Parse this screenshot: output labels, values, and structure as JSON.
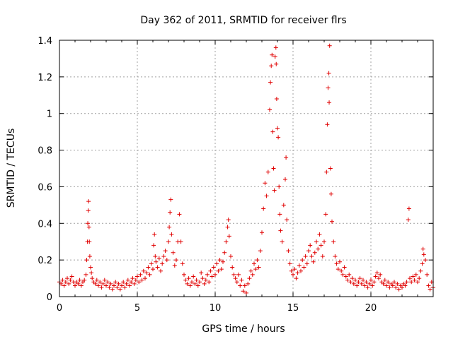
{
  "chart_data": {
    "type": "scatter",
    "title": "Day 362 of 2011, SRMTID for receiver flrs",
    "xlabel": "GPS time / hours",
    "ylabel": "SRMTID / TECUs",
    "xlim": [
      0,
      24
    ],
    "ylim": [
      0,
      1.4
    ],
    "xticks": [
      0,
      5,
      10,
      15,
      20
    ],
    "yticks": [
      0,
      0.2,
      0.4,
      0.6,
      0.8,
      1.0,
      1.2,
      1.4
    ],
    "ytick_labels": [
      "0",
      "0.2",
      "0.4",
      "0.6",
      "0.8",
      "1",
      "1.2",
      "1.4"
    ],
    "grid": true,
    "marker": "+",
    "color": "#e00000",
    "series": [
      {
        "name": "SRMTID",
        "points": [
          [
            0.0,
            0.08
          ],
          [
            0.1,
            0.07
          ],
          [
            0.2,
            0.09
          ],
          [
            0.3,
            0.06
          ],
          [
            0.4,
            0.08
          ],
          [
            0.5,
            0.1
          ],
          [
            0.6,
            0.07
          ],
          [
            0.7,
            0.09
          ],
          [
            0.8,
            0.11
          ],
          [
            0.9,
            0.08
          ],
          [
            1.0,
            0.06
          ],
          [
            1.1,
            0.08
          ],
          [
            1.2,
            0.07
          ],
          [
            1.3,
            0.09
          ],
          [
            1.4,
            0.06
          ],
          [
            1.5,
            0.08
          ],
          [
            1.6,
            0.09
          ],
          [
            1.7,
            0.12
          ],
          [
            1.75,
            0.2
          ],
          [
            1.8,
            0.3
          ],
          [
            1.82,
            0.4
          ],
          [
            1.85,
            0.47
          ],
          [
            1.87,
            0.52
          ],
          [
            1.9,
            0.38
          ],
          [
            1.92,
            0.3
          ],
          [
            1.95,
            0.22
          ],
          [
            2.0,
            0.16
          ],
          [
            2.05,
            0.13
          ],
          [
            2.1,
            0.1
          ],
          [
            2.2,
            0.08
          ],
          [
            2.3,
            0.07
          ],
          [
            2.4,
            0.09
          ],
          [
            2.5,
            0.06
          ],
          [
            2.6,
            0.08
          ],
          [
            2.7,
            0.05
          ],
          [
            2.8,
            0.07
          ],
          [
            2.9,
            0.09
          ],
          [
            3.0,
            0.06
          ],
          [
            3.1,
            0.08
          ],
          [
            3.2,
            0.05
          ],
          [
            3.3,
            0.07
          ],
          [
            3.4,
            0.04
          ],
          [
            3.5,
            0.06
          ],
          [
            3.6,
            0.08
          ],
          [
            3.7,
            0.05
          ],
          [
            3.8,
            0.07
          ],
          [
            3.9,
            0.04
          ],
          [
            4.0,
            0.06
          ],
          [
            4.1,
            0.08
          ],
          [
            4.2,
            0.05
          ],
          [
            4.3,
            0.07
          ],
          [
            4.4,
            0.09
          ],
          [
            4.5,
            0.06
          ],
          [
            4.6,
            0.08
          ],
          [
            4.7,
            0.1
          ],
          [
            4.8,
            0.07
          ],
          [
            4.9,
            0.09
          ],
          [
            5.0,
            0.11
          ],
          [
            5.1,
            0.08
          ],
          [
            5.2,
            0.12
          ],
          [
            5.3,
            0.09
          ],
          [
            5.4,
            0.14
          ],
          [
            5.5,
            0.1
          ],
          [
            5.6,
            0.13
          ],
          [
            5.7,
            0.16
          ],
          [
            5.8,
            0.12
          ],
          [
            5.9,
            0.18
          ],
          [
            6.0,
            0.15
          ],
          [
            6.05,
            0.28
          ],
          [
            6.1,
            0.34
          ],
          [
            6.15,
            0.22
          ],
          [
            6.2,
            0.19
          ],
          [
            6.3,
            0.16
          ],
          [
            6.4,
            0.21
          ],
          [
            6.5,
            0.14
          ],
          [
            6.6,
            0.18
          ],
          [
            6.7,
            0.22
          ],
          [
            6.8,
            0.25
          ],
          [
            6.9,
            0.2
          ],
          [
            7.0,
            0.3
          ],
          [
            7.05,
            0.38
          ],
          [
            7.1,
            0.46
          ],
          [
            7.15,
            0.53
          ],
          [
            7.2,
            0.34
          ],
          [
            7.3,
            0.24
          ],
          [
            7.4,
            0.17
          ],
          [
            7.5,
            0.2
          ],
          [
            7.6,
            0.3
          ],
          [
            7.7,
            0.45
          ],
          [
            7.8,
            0.3
          ],
          [
            7.9,
            0.18
          ],
          [
            8.0,
            0.12
          ],
          [
            8.1,
            0.09
          ],
          [
            8.2,
            0.07
          ],
          [
            8.3,
            0.1
          ],
          [
            8.4,
            0.06
          ],
          [
            8.5,
            0.08
          ],
          [
            8.6,
            0.11
          ],
          [
            8.7,
            0.07
          ],
          [
            8.8,
            0.09
          ],
          [
            8.9,
            0.06
          ],
          [
            9.0,
            0.08
          ],
          [
            9.1,
            0.13
          ],
          [
            9.2,
            0.1
          ],
          [
            9.3,
            0.07
          ],
          [
            9.4,
            0.09
          ],
          [
            9.5,
            0.12
          ],
          [
            9.6,
            0.08
          ],
          [
            9.7,
            0.14
          ],
          [
            9.8,
            0.11
          ],
          [
            9.9,
            0.16
          ],
          [
            10.0,
            0.12
          ],
          [
            10.1,
            0.18
          ],
          [
            10.2,
            0.14
          ],
          [
            10.3,
            0.2
          ],
          [
            10.4,
            0.15
          ],
          [
            10.5,
            0.19
          ],
          [
            10.6,
            0.24
          ],
          [
            10.7,
            0.3
          ],
          [
            10.8,
            0.38
          ],
          [
            10.85,
            0.42
          ],
          [
            10.9,
            0.33
          ],
          [
            11.0,
            0.22
          ],
          [
            11.1,
            0.16
          ],
          [
            11.2,
            0.12
          ],
          [
            11.3,
            0.1
          ],
          [
            11.4,
            0.08
          ],
          [
            11.5,
            0.12
          ],
          [
            11.6,
            0.06
          ],
          [
            11.7,
            0.09
          ],
          [
            11.8,
            0.03
          ],
          [
            11.9,
            0.06
          ],
          [
            12.0,
            0.02
          ],
          [
            12.1,
            0.07
          ],
          [
            12.2,
            0.1
          ],
          [
            12.3,
            0.14
          ],
          [
            12.4,
            0.12
          ],
          [
            12.5,
            0.18
          ],
          [
            12.6,
            0.15
          ],
          [
            12.7,
            0.2
          ],
          [
            12.8,
            0.16
          ],
          [
            12.9,
            0.25
          ],
          [
            13.0,
            0.35
          ],
          [
            13.1,
            0.48
          ],
          [
            13.2,
            0.62
          ],
          [
            13.3,
            0.55
          ],
          [
            13.4,
            0.68
          ],
          [
            13.5,
            1.02
          ],
          [
            13.55,
            1.17
          ],
          [
            13.6,
            1.26
          ],
          [
            13.65,
            1.32
          ],
          [
            13.7,
            0.9
          ],
          [
            13.75,
            0.7
          ],
          [
            13.8,
            0.58
          ],
          [
            13.85,
            1.31
          ],
          [
            13.9,
            1.36
          ],
          [
            13.92,
            1.27
          ],
          [
            13.95,
            1.08
          ],
          [
            14.0,
            0.92
          ],
          [
            14.05,
            0.87
          ],
          [
            14.1,
            0.6
          ],
          [
            14.15,
            0.45
          ],
          [
            14.2,
            0.36
          ],
          [
            14.3,
            0.3
          ],
          [
            14.4,
            0.5
          ],
          [
            14.5,
            0.64
          ],
          [
            14.55,
            0.76
          ],
          [
            14.6,
            0.42
          ],
          [
            14.7,
            0.25
          ],
          [
            14.8,
            0.18
          ],
          [
            14.9,
            0.14
          ],
          [
            15.0,
            0.12
          ],
          [
            15.1,
            0.15
          ],
          [
            15.2,
            0.1
          ],
          [
            15.3,
            0.13
          ],
          [
            15.4,
            0.17
          ],
          [
            15.5,
            0.14
          ],
          [
            15.6,
            0.2
          ],
          [
            15.7,
            0.16
          ],
          [
            15.8,
            0.22
          ],
          [
            15.9,
            0.18
          ],
          [
            16.0,
            0.25
          ],
          [
            16.1,
            0.28
          ],
          [
            16.2,
            0.22
          ],
          [
            16.3,
            0.19
          ],
          [
            16.4,
            0.24
          ],
          [
            16.5,
            0.3
          ],
          [
            16.6,
            0.26
          ],
          [
            16.7,
            0.34
          ],
          [
            16.8,
            0.28
          ],
          [
            16.9,
            0.22
          ],
          [
            17.0,
            0.3
          ],
          [
            17.1,
            0.45
          ],
          [
            17.15,
            0.68
          ],
          [
            17.2,
            0.94
          ],
          [
            17.25,
            1.14
          ],
          [
            17.3,
            1.22
          ],
          [
            17.32,
            1.06
          ],
          [
            17.35,
            1.37
          ],
          [
            17.4,
            0.7
          ],
          [
            17.45,
            0.56
          ],
          [
            17.5,
            0.41
          ],
          [
            17.6,
            0.3
          ],
          [
            17.7,
            0.22
          ],
          [
            17.8,
            0.18
          ],
          [
            17.9,
            0.15
          ],
          [
            18.0,
            0.19
          ],
          [
            18.1,
            0.14
          ],
          [
            18.2,
            0.12
          ],
          [
            18.3,
            0.16
          ],
          [
            18.4,
            0.11
          ],
          [
            18.5,
            0.09
          ],
          [
            18.6,
            0.12
          ],
          [
            18.7,
            0.08
          ],
          [
            18.8,
            0.1
          ],
          [
            18.9,
            0.07
          ],
          [
            19.0,
            0.09
          ],
          [
            19.1,
            0.06
          ],
          [
            19.2,
            0.08
          ],
          [
            19.3,
            0.1
          ],
          [
            19.4,
            0.07
          ],
          [
            19.5,
            0.09
          ],
          [
            19.6,
            0.06
          ],
          [
            19.7,
            0.08
          ],
          [
            19.8,
            0.05
          ],
          [
            19.9,
            0.07
          ],
          [
            20.0,
            0.09
          ],
          [
            20.1,
            0.06
          ],
          [
            20.2,
            0.08
          ],
          [
            20.3,
            0.11
          ],
          [
            20.4,
            0.13
          ],
          [
            20.5,
            0.1
          ],
          [
            20.6,
            0.12
          ],
          [
            20.7,
            0.08
          ],
          [
            20.8,
            0.07
          ],
          [
            20.9,
            0.09
          ],
          [
            21.0,
            0.06
          ],
          [
            21.1,
            0.08
          ],
          [
            21.2,
            0.05
          ],
          [
            21.3,
            0.07
          ],
          [
            21.4,
            0.06
          ],
          [
            21.5,
            0.08
          ],
          [
            21.6,
            0.05
          ],
          [
            21.7,
            0.07
          ],
          [
            21.8,
            0.04
          ],
          [
            21.9,
            0.06
          ],
          [
            22.0,
            0.05
          ],
          [
            22.1,
            0.07
          ],
          [
            22.2,
            0.06
          ],
          [
            22.3,
            0.08
          ],
          [
            22.4,
            0.42
          ],
          [
            22.45,
            0.48
          ],
          [
            22.5,
            0.1
          ],
          [
            22.6,
            0.08
          ],
          [
            22.7,
            0.11
          ],
          [
            22.8,
            0.09
          ],
          [
            22.9,
            0.12
          ],
          [
            23.0,
            0.08
          ],
          [
            23.1,
            0.1
          ],
          [
            23.2,
            0.14
          ],
          [
            23.3,
            0.18
          ],
          [
            23.35,
            0.26
          ],
          [
            23.4,
            0.23
          ],
          [
            23.5,
            0.2
          ],
          [
            23.6,
            0.12
          ],
          [
            23.7,
            0.06
          ],
          [
            23.8,
            0.04
          ],
          [
            23.9,
            0.08
          ],
          [
            24.0,
            0.05
          ]
        ]
      }
    ]
  }
}
